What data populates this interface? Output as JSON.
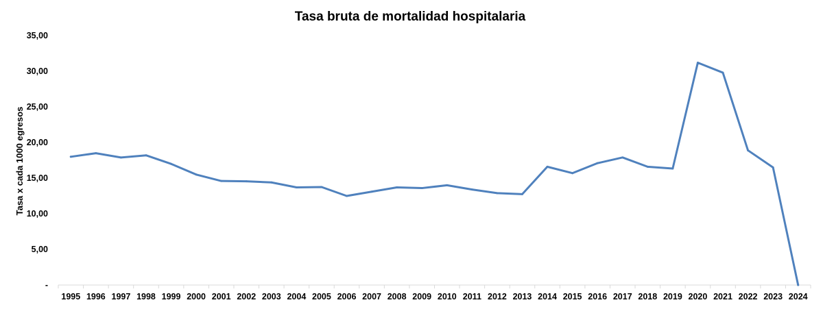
{
  "chart_data": {
    "type": "line",
    "title": "Tasa bruta de mortalidad hospitalaria",
    "xlabel": "",
    "ylabel": "Tasa x cada 1000 egresos",
    "ylim": [
      0,
      35
    ],
    "ytick_values": [
      0,
      5,
      10,
      15,
      20,
      25,
      30,
      35
    ],
    "ytick_labels": [
      "-",
      "5,00",
      "10,00",
      "15,00",
      "20,00",
      "25,00",
      "30,00",
      "35,00"
    ],
    "grid": false,
    "legend": "none",
    "categories": [
      "1995",
      "1996",
      "1997",
      "1998",
      "1999",
      "2000",
      "2001",
      "2002",
      "2003",
      "2004",
      "2005",
      "2006",
      "2007",
      "2008",
      "2009",
      "2010",
      "2011",
      "2012",
      "2013",
      "2014",
      "2015",
      "2016",
      "2017",
      "2018",
      "2019",
      "2020",
      "2021",
      "2022",
      "2023",
      "2024"
    ],
    "series": [
      {
        "color": "#4f81bd",
        "values": [
          18.0,
          18.5,
          17.9,
          18.2,
          17.0,
          15.5,
          14.6,
          14.55,
          14.4,
          13.7,
          13.75,
          12.5,
          13.1,
          13.7,
          13.6,
          14.0,
          13.4,
          12.9,
          12.75,
          16.6,
          15.7,
          17.1,
          17.9,
          16.6,
          16.35,
          31.2,
          29.8,
          18.9,
          16.5,
          0.0
        ]
      }
    ]
  }
}
